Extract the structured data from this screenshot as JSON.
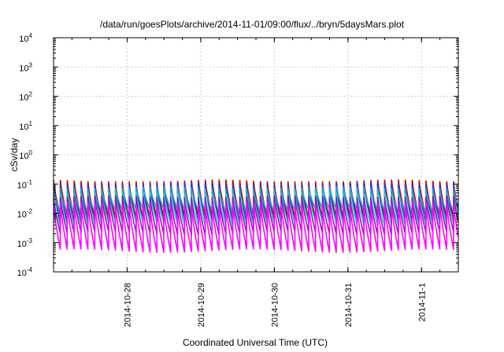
{
  "chart_data": {
    "type": "line",
    "title": "/data/run/goesPlots/archive/2014-11-01/09:00/flux/../bryn/5daysMars.plot",
    "xlabel": "Coordinated Universal Time (UTC)",
    "ylabel": "cSv/day",
    "yscale": "log",
    "ylim": [
      0.0001,
      10000
    ],
    "xlim": [
      "2014-10-27T00:00",
      "2014-11-01T12:00"
    ],
    "x_ticks": [
      "2014-10-28",
      "2014-10-29",
      "2014-10-30",
      "2014-10-31",
      "2014-11-1"
    ],
    "y_ticks": [
      {
        "base": "10",
        "exp": "-4"
      },
      {
        "base": "10",
        "exp": "-3"
      },
      {
        "base": "10",
        "exp": "-2"
      },
      {
        "base": "10",
        "exp": "-1"
      },
      {
        "base": "10",
        "exp": "0"
      },
      {
        "base": "10",
        "exp": "1"
      },
      {
        "base": "10",
        "exp": "2"
      },
      {
        "base": "10",
        "exp": "3"
      },
      {
        "base": "10",
        "exp": "4"
      }
    ],
    "grid": true,
    "legend": "none",
    "sawtooth_period_hours": 2.25,
    "series": [
      {
        "color": "#cc0000",
        "peak": 0.12,
        "trough": 0.0075
      },
      {
        "color": "#1a3fd0",
        "peak": 0.095,
        "trough": 0.005
      },
      {
        "color": "#27a0d8",
        "peak": 0.07,
        "trough": 0.012
      },
      {
        "color": "#2ecfb0",
        "peak": 0.045,
        "trough": 0.004
      },
      {
        "color": "#8a1bb8",
        "peak": 0.035,
        "trough": 0.002
      },
      {
        "color": "#ff00ff",
        "peak": 0.02,
        "trough": 0.0005
      }
    ]
  }
}
